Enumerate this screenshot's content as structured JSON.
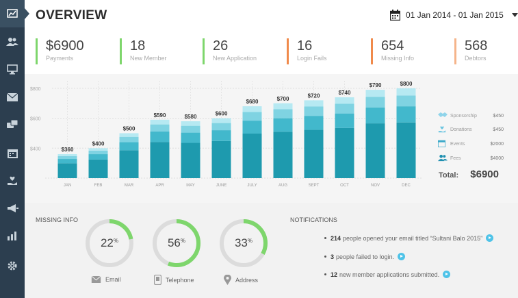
{
  "header": {
    "title": "OVERVIEW",
    "date_range": "01 Jan 2014 - 01 Jan 2015"
  },
  "sidebar": {
    "items": [
      {
        "icon": "chart-icon",
        "active": true
      },
      {
        "icon": "users-icon"
      },
      {
        "icon": "monitor-icon"
      },
      {
        "icon": "mail-icon"
      },
      {
        "icon": "chat-icon"
      },
      {
        "icon": "calendar-icon"
      },
      {
        "icon": "heart-hand-icon"
      },
      {
        "icon": "megaphone-icon"
      },
      {
        "icon": "bar-chart-icon"
      },
      {
        "icon": "gear-icon"
      }
    ]
  },
  "stats": [
    {
      "value": "$6900",
      "label": "Payments",
      "color": "#7ed66c"
    },
    {
      "value": "18",
      "label": "New Member",
      "color": "#7ed66c"
    },
    {
      "value": "26",
      "label": "New Application",
      "color": "#7ed66c"
    },
    {
      "value": "16",
      "label": "Login Fails",
      "color": "#f08a4b"
    },
    {
      "value": "654",
      "label": "Missing Info",
      "color": "#f08a4b"
    },
    {
      "value": "568",
      "label": "Debtors",
      "color": "#f5b48a"
    }
  ],
  "chart_data": {
    "type": "bar",
    "stacked": true,
    "categories": [
      "JAN",
      "FEB",
      "MAR",
      "APR",
      "MAY",
      "JUNE",
      "JULY",
      "AUG",
      "SEPT",
      "OCT",
      "NOV",
      "DEC"
    ],
    "totals": [
      360,
      400,
      500,
      590,
      580,
      600,
      680,
      700,
      720,
      740,
      790,
      800
    ],
    "total_labels": [
      "$360",
      "$400",
      "$500",
      "$590",
      "$580",
      "$600",
      "$680",
      "$700",
      "$720",
      "$740",
      "$790",
      "$800"
    ],
    "y_ticks": [
      {
        "value": 400,
        "label": "$400"
      },
      {
        "value": 600,
        "label": "$600"
      },
      {
        "value": 800,
        "label": "$800"
      }
    ],
    "ylim": [
      200,
      850
    ],
    "series_fractions": [
      0.62,
      0.18,
      0.12,
      0.08
    ],
    "series_colors": [
      "#1e9aae",
      "#42b8cc",
      "#7fd3e2",
      "#b6e9f2"
    ],
    "grid": true
  },
  "legend": {
    "items": [
      {
        "name": "Sponsorship",
        "amount": "$450",
        "icon": "handshake-icon"
      },
      {
        "name": "Donations",
        "amount": "$450",
        "icon": "heart-hand-icon"
      },
      {
        "name": "Events",
        "amount": "$2000",
        "icon": "calendar-icon"
      },
      {
        "name": "Fees",
        "amount": "$4000",
        "icon": "users-icon"
      }
    ],
    "total_label": "Total:",
    "total_value": "$6900"
  },
  "missing_info": {
    "title": "MISSING INFO",
    "gauges": [
      {
        "value": 22,
        "unit": "%",
        "label": "Email",
        "icon": "mail-icon"
      },
      {
        "value": 56,
        "unit": "%",
        "label": "Telephone",
        "icon": "phone-icon"
      },
      {
        "value": 33,
        "unit": "%",
        "label": "Address",
        "icon": "map-pin-icon"
      }
    ],
    "ring_color": "#7ed66c",
    "track_color": "#dcdcdc"
  },
  "notifications": {
    "title": "NOTIFICATIONS",
    "items": [
      {
        "bold": "214",
        "text": "people opened your email titled “Sultani Balo 2015”"
      },
      {
        "bold": "3",
        "text": "people failed to login."
      },
      {
        "bold": "12",
        "text": "new member applications submitted."
      }
    ]
  }
}
